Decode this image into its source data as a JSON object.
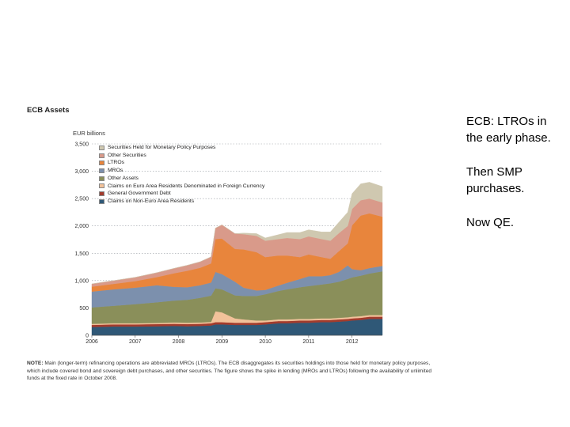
{
  "chart_data": {
    "type": "area",
    "stacked": true,
    "title": "ECB Assets",
    "ylabel": "EUR billions",
    "ylim": [
      0,
      3500
    ],
    "yticks": [
      0,
      500,
      1000,
      1500,
      2000,
      2500,
      3000,
      3500
    ],
    "ytick_labels": [
      "0",
      "500",
      "1,000",
      "1,500",
      "2,000",
      "2,500",
      "3,000",
      "3,500"
    ],
    "xlim": [
      2006,
      2012.7
    ],
    "xticks": [
      2006,
      2007,
      2008,
      2009,
      2010,
      2011,
      2012
    ],
    "xtick_labels": [
      "2006",
      "2007",
      "2008",
      "2009",
      "2010",
      "2011",
      "2012"
    ],
    "grid": "horizontal dotted",
    "legend_position": "top-left",
    "x": [
      2006.0,
      2006.5,
      2007.0,
      2007.5,
      2007.9,
      2008.2,
      2008.5,
      2008.75,
      2008.85,
      2009.0,
      2009.3,
      2009.5,
      2009.8,
      2010.0,
      2010.3,
      2010.5,
      2010.8,
      2011.0,
      2011.3,
      2011.5,
      2011.7,
      2011.9,
      2012.0,
      2012.2,
      2012.4,
      2012.7
    ],
    "series": [
      {
        "name": "Claims on Non-Euro Area Residents",
        "color": "#2f5877",
        "values": [
          150,
          160,
          160,
          165,
          170,
          165,
          170,
          180,
          200,
          200,
          190,
          190,
          190,
          200,
          220,
          220,
          230,
          230,
          240,
          240,
          250,
          260,
          270,
          280,
          300,
          300
        ]
      },
      {
        "name": "General Government Debt",
        "color": "#a23b2c",
        "values": [
          40,
          40,
          40,
          40,
          40,
          40,
          40,
          40,
          40,
          40,
          40,
          40,
          40,
          40,
          40,
          40,
          40,
          40,
          40,
          40,
          40,
          40,
          40,
          40,
          40,
          40
        ]
      },
      {
        "name": "Claims on Euro Area Residents Denominated in Foreign Currency",
        "color": "#f2c29a",
        "values": [
          20,
          20,
          20,
          20,
          25,
          25,
          25,
          25,
          200,
          180,
          80,
          60,
          40,
          30,
          30,
          30,
          30,
          30,
          30,
          30,
          30,
          30,
          30,
          30,
          30,
          30
        ]
      },
      {
        "name": "Other Assets",
        "color": "#8a8f5a",
        "values": [
          300,
          320,
          350,
          380,
          400,
          420,
          450,
          480,
          420,
          420,
          420,
          430,
          450,
          480,
          520,
          550,
          580,
          600,
          620,
          640,
          660,
          700,
          720,
          740,
          760,
          800
        ]
      },
      {
        "name": "MROs",
        "color": "#7c90ad",
        "values": [
          290,
          300,
          300,
          310,
          250,
          230,
          230,
          240,
          300,
          280,
          250,
          150,
          100,
          80,
          100,
          120,
          150,
          180,
          150,
          150,
          180,
          250,
          150,
          100,
          100,
          100
        ]
      },
      {
        "name": "LTROs",
        "color": "#e8853c",
        "values": [
          90,
          100,
          120,
          150,
          250,
          300,
          320,
          350,
          600,
          650,
          600,
          700,
          700,
          600,
          550,
          500,
          400,
          400,
          350,
          300,
          380,
          400,
          800,
          1000,
          1000,
          900
        ]
      },
      {
        "name": "Other Securities",
        "color": "#d99a8a",
        "values": [
          50,
          60,
          70,
          80,
          90,
          100,
          110,
          120,
          200,
          250,
          280,
          280,
          300,
          300,
          300,
          320,
          330,
          330,
          330,
          330,
          330,
          320,
          300,
          280,
          270,
          260
        ]
      },
      {
        "name": "Securities Held for Monetary Policy Purposes",
        "color": "#cfc8b0",
        "values": [
          0,
          0,
          0,
          0,
          0,
          0,
          0,
          0,
          0,
          0,
          0,
          20,
          40,
          50,
          80,
          100,
          120,
          120,
          130,
          160,
          200,
          250,
          280,
          300,
          300,
          290
        ]
      }
    ]
  },
  "note": {
    "label": "NOTE:",
    "text": "Main (longer-term) refinancing operations are abbreviated MROs (LTROs). The ECB disaggregates its securities holdings into those held for monetary policy purposes, which include covered bond and sovereign debt purchases, and other securities. The figure shows the spike in lending (MROs and LTROs) following the availability of unlimited funds at the fixed rate in October 2008."
  },
  "side_text": {
    "p1": "ECB:  LTROs in the early phase.",
    "p2": "Then SMP purchases.",
    "p3": "Now QE."
  }
}
